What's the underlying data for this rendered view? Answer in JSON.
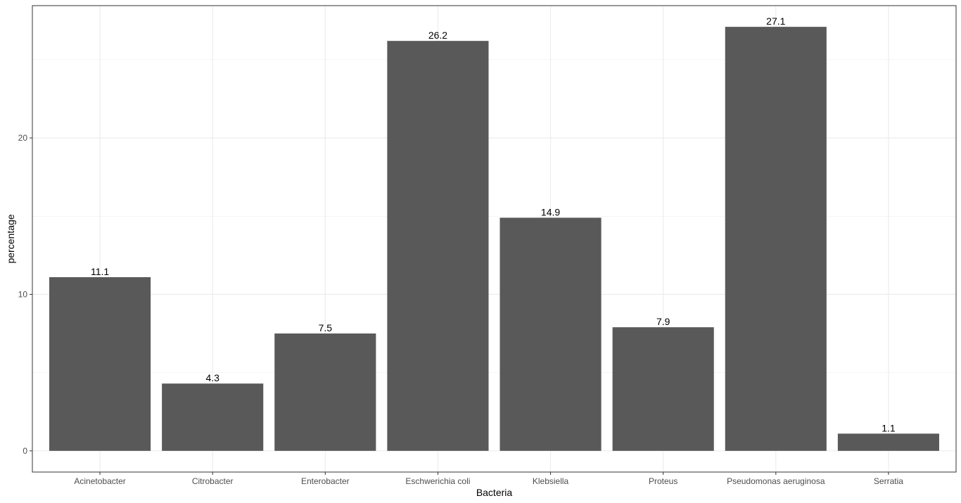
{
  "chart_data": {
    "type": "bar",
    "categories": [
      "Acinetobacter",
      "Citrobacter",
      "Enterobacter",
      "Eschwerichia coli",
      "Klebsiella",
      "Proteus",
      "Pseudomonas aeruginosa",
      "Serratia"
    ],
    "values": [
      11.1,
      4.3,
      7.5,
      26.2,
      14.9,
      7.9,
      27.1,
      1.1
    ],
    "data_labels": [
      "11.1",
      "4.3",
      "7.5",
      "26.2",
      "14.9",
      "7.9",
      "27.1",
      "1.1"
    ],
    "xlabel": "Bacteria",
    "ylabel": "percentage",
    "ylim": [
      -1.355,
      28.455
    ],
    "yticks": [
      0,
      10,
      20
    ],
    "ytick_labels": [
      "0",
      "10",
      "20"
    ],
    "grid": true,
    "bar_color": "#595959",
    "grid_color": "#ebebeb",
    "panel_border_color": "#333333"
  }
}
